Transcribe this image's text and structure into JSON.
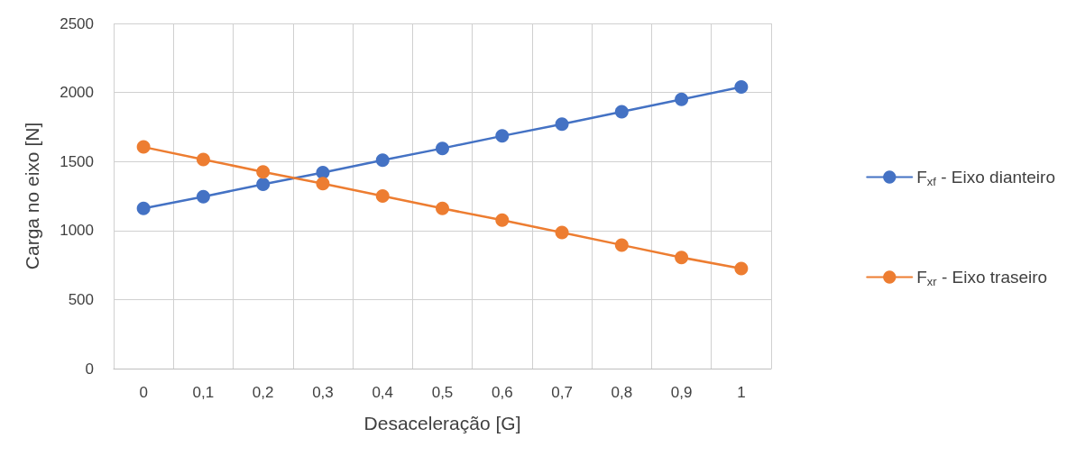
{
  "chart_data": {
    "type": "line",
    "xlabel": "Desaceleração [G]",
    "ylabel": "Carga no eixo [N]",
    "categories": [
      "0",
      "0,1",
      "0,2",
      "0,3",
      "0,4",
      "0,5",
      "0,6",
      "0,7",
      "0,8",
      "0,9",
      "1"
    ],
    "series": [
      {
        "name": "F$_{xf}$ - Eixo dianteiro",
        "color": "#4472c4",
        "values": [
          1160,
          1245,
          1335,
          1420,
          1510,
          1595,
          1685,
          1770,
          1860,
          1950,
          2040
        ]
      },
      {
        "name": "F$_{xr}$ - Eixo traseiro",
        "color": "#ed7d31",
        "values": [
          1605,
          1515,
          1425,
          1340,
          1250,
          1160,
          1075,
          985,
          895,
          805,
          725
        ]
      }
    ],
    "ylim": [
      0,
      2500
    ],
    "yticks": [
      0,
      500,
      1000,
      1500,
      2000,
      2500
    ],
    "grid": true,
    "legend": "right",
    "marker": "circle",
    "line_style": "solid"
  }
}
